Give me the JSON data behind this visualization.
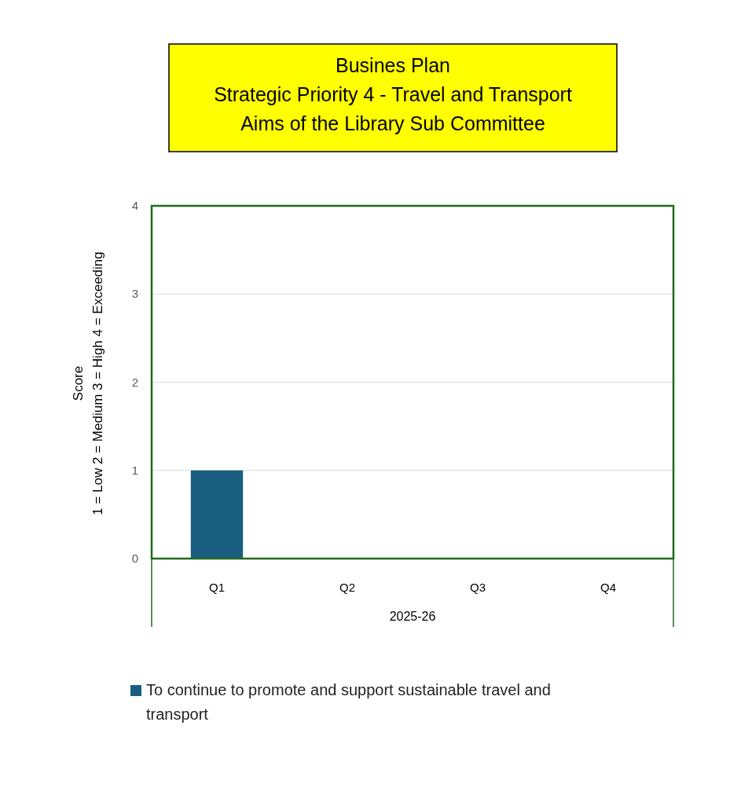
{
  "chart_data": {
    "type": "bar",
    "title": "Busines  Plan\nStrategic Priority 4 - Travel and Transport\nAims of the Library Sub Committee",
    "xlabel": "2025-26",
    "ylabel": "Score\n1 = Low  2 = Medium  3 = High 4 = Exceeding",
    "categories": [
      "Q1",
      "Q2",
      "Q3",
      "Q4"
    ],
    "series": [
      {
        "name": "To continue to promote and support sustainable travel and transport",
        "color": "#1a5e80",
        "values": [
          1,
          null,
          null,
          null
        ]
      }
    ],
    "ylim": [
      0,
      4
    ],
    "yticks": [
      0,
      1,
      2,
      3,
      4
    ],
    "grid": "y",
    "legend": "bottom"
  }
}
